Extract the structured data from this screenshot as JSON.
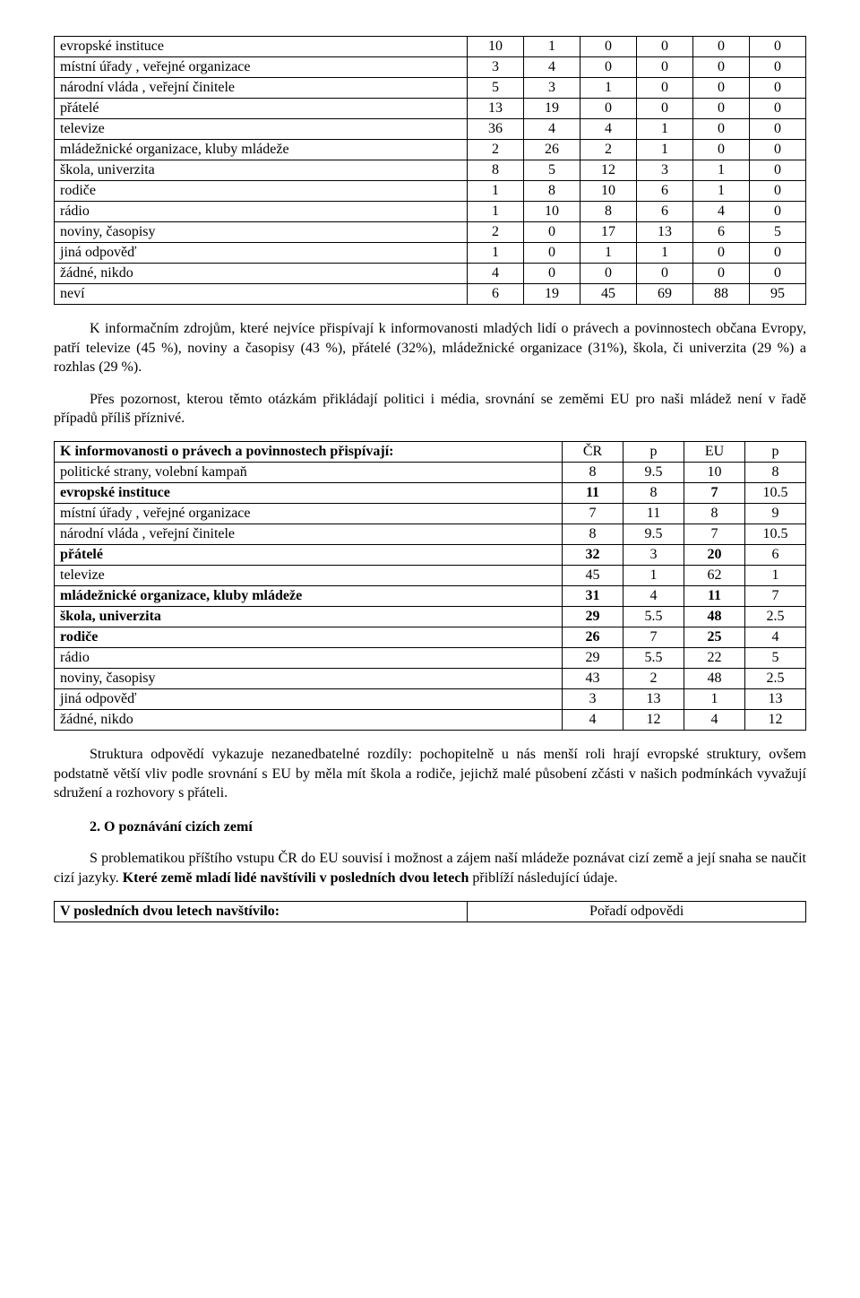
{
  "table1": {
    "rows": [
      {
        "label": "evropské instituce",
        "v": [
          10,
          1,
          0,
          0,
          0,
          0
        ],
        "bold": false
      },
      {
        "label": "místní úřady , veřejné organizace",
        "v": [
          3,
          4,
          0,
          0,
          0,
          0
        ],
        "bold": false
      },
      {
        "label": "národní vláda , veřejní činitele",
        "v": [
          5,
          3,
          1,
          0,
          0,
          0
        ],
        "bold": false
      },
      {
        "label": "přátelé",
        "v": [
          13,
          19,
          0,
          0,
          0,
          0
        ],
        "bold": false
      },
      {
        "label": "televize",
        "v": [
          36,
          4,
          4,
          1,
          0,
          0
        ],
        "bold": false
      },
      {
        "label": "mládežnické organizace, kluby mládeže",
        "v": [
          2,
          26,
          2,
          1,
          0,
          0
        ],
        "bold": false
      },
      {
        "label": "škola, univerzita",
        "v": [
          8,
          5,
          12,
          3,
          1,
          0
        ],
        "bold": false
      },
      {
        "label": "rodiče",
        "v": [
          1,
          8,
          10,
          6,
          1,
          0
        ],
        "bold": false
      },
      {
        "label": "rádio",
        "v": [
          1,
          10,
          8,
          6,
          4,
          0
        ],
        "bold": false
      },
      {
        "label": "noviny, časopisy",
        "v": [
          2,
          0,
          17,
          13,
          6,
          5
        ],
        "bold": false
      },
      {
        "label": "jiná odpověď",
        "v": [
          1,
          0,
          1,
          1,
          0,
          0
        ],
        "bold": false
      },
      {
        "label": "žádné, nikdo",
        "v": [
          4,
          0,
          0,
          0,
          0,
          0
        ],
        "bold": false
      },
      {
        "label": "neví",
        "v": [
          6,
          19,
          45,
          69,
          88,
          95
        ],
        "bold": false
      }
    ]
  },
  "para1": "K informačním zdrojům, které nejvíce přispívají k informovanosti mladých lidí o právech a povinnostech občana Evropy, patří televize (45 %), noviny a časopisy (43 %), přátelé (32%), mládežnické organizace (31%), škola, či univerzita (29 %) a rozhlas (29 %).",
  "para2": "Přes pozornost, kterou těmto otázkám přikládají politici i média, srovnání se zeměmi EU pro naši mládež není v řadě případů příliš příznivé.",
  "table2": {
    "header": {
      "label": "K informovanosti o právech a povinnostech přispívají:",
      "c1": "ČR",
      "c2": "p",
      "c3": "EU",
      "c4": "p"
    },
    "rows": [
      {
        "label": "politické strany, volební kampaň",
        "v": [
          "8",
          "9.5",
          "10",
          "8"
        ],
        "bold": false
      },
      {
        "label": "evropské instituce",
        "v": [
          "11",
          "8",
          "7",
          "10.5"
        ],
        "bold": true
      },
      {
        "label": "místní úřady , veřejné organizace",
        "v": [
          "7",
          "11",
          "8",
          "9"
        ],
        "bold": false
      },
      {
        "label": "národní vláda , veřejní činitele",
        "v": [
          "8",
          "9.5",
          "7",
          "10.5"
        ],
        "bold": false
      },
      {
        "label": "přátelé",
        "v": [
          "32",
          "3",
          "20",
          "6"
        ],
        "bold": true
      },
      {
        "label": "televize",
        "v": [
          "45",
          "1",
          "62",
          "1"
        ],
        "bold": false
      },
      {
        "label": "mládežnické organizace, kluby mládeže",
        "v": [
          "31",
          "4",
          "11",
          "7"
        ],
        "bold": true
      },
      {
        "label": "škola, univerzita",
        "v": [
          "29",
          "5.5",
          "48",
          "2.5"
        ],
        "bold": true
      },
      {
        "label": "rodiče",
        "v": [
          "26",
          "7",
          "25",
          "4"
        ],
        "bold": true
      },
      {
        "label": "rádio",
        "v": [
          "29",
          "5.5",
          "22",
          "5"
        ],
        "bold": false
      },
      {
        "label": "noviny, časopisy",
        "v": [
          "43",
          "2",
          "48",
          "2.5"
        ],
        "bold": false
      },
      {
        "label": "jiná odpověď",
        "v": [
          "3",
          "13",
          "1",
          "13"
        ],
        "bold": false
      },
      {
        "label": "žádné, nikdo",
        "v": [
          "4",
          "12",
          "4",
          "12"
        ],
        "bold": false
      }
    ]
  },
  "para3": "Struktura odpovědí vykazuje nezanedbatelné rozdíly: pochopitelně u nás menší roli hrají evropské struktury, ovšem podstatně větší vliv podle srovnání s EU by měla mít škola a rodiče, jejichž malé působení zčásti v našich podmínkách vyvažují sdružení a rozhovory s přáteli.",
  "section2_head": "2. O poznávání cizích zemí",
  "para4_a": "S problematikou příštího vstupu ČR do EU souvisí i možnost a zájem naší mládeže poznávat cizí země a její snaha se naučit cizí jazyky. ",
  "para4_b": "Které země mladí lidé navštívili v posledních dvou letech",
  "para4_c": " přiblíží následující údaje.",
  "table3": {
    "left": "V posledních dvou letech navštívilo:",
    "right": "Pořadí odpovědi"
  }
}
